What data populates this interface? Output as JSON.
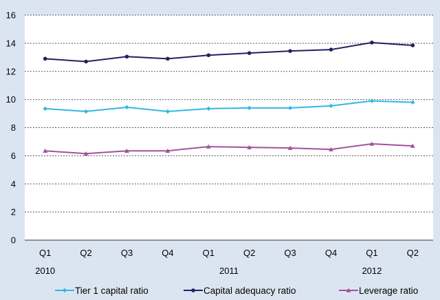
{
  "chart_data": {
    "type": "line",
    "categories": [
      "Q1",
      "Q2",
      "Q3",
      "Q4",
      "Q1",
      "Q2",
      "Q3",
      "Q4",
      "Q1",
      "Q2"
    ],
    "year_labels": [
      {
        "label": "2010",
        "at_index": 0
      },
      {
        "label": "2011",
        "at_index": 4
      },
      {
        "label": "2012",
        "at_index": 8
      }
    ],
    "yticks": [
      "0",
      "2",
      "4",
      "6",
      "8",
      "10",
      "12",
      "14",
      "16"
    ],
    "ylim": [
      0,
      16
    ],
    "grid": true,
    "legend_position": "bottom",
    "series": [
      {
        "name": "Tier 1 capital ratio",
        "color": "#33b5e5",
        "marker": "diamond",
        "values": [
          9.35,
          9.15,
          9.45,
          9.15,
          9.35,
          9.4,
          9.4,
          9.55,
          9.9,
          9.8
        ]
      },
      {
        "name": "Capital adequacy ratio",
        "color": "#1f2160",
        "marker": "circle",
        "values": [
          12.9,
          12.7,
          13.05,
          12.9,
          13.15,
          13.3,
          13.45,
          13.55,
          14.05,
          13.85
        ]
      },
      {
        "name": "Leverage ratio",
        "color": "#a54f9c",
        "marker": "triangle",
        "values": [
          6.35,
          6.15,
          6.35,
          6.35,
          6.65,
          6.6,
          6.55,
          6.45,
          6.85,
          6.7
        ]
      }
    ]
  }
}
